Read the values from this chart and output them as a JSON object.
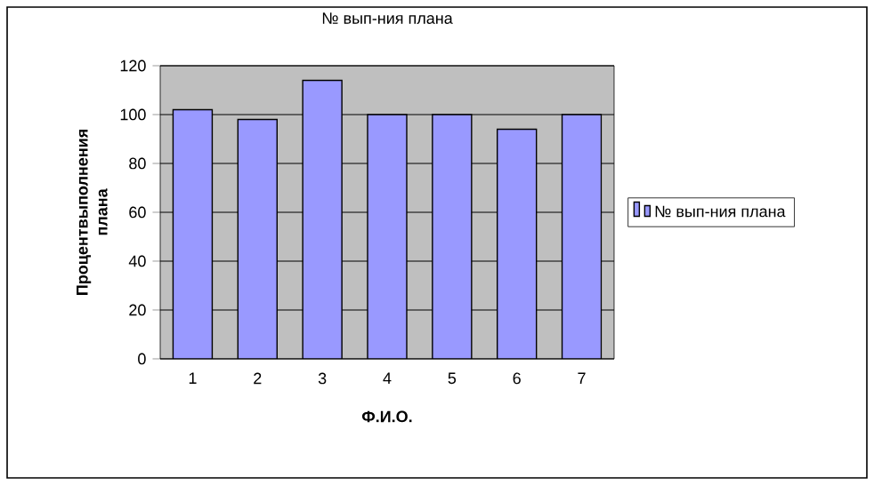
{
  "chart_data": {
    "type": "bar",
    "title": "№ вып-ния плана",
    "xlabel": "Ф.И.О.",
    "ylabel": "Процентвыполнения плана",
    "categories": [
      "1",
      "2",
      "3",
      "4",
      "5",
      "6",
      "7"
    ],
    "series": [
      {
        "name": "№ вып-ния плана",
        "color": "#9999ff",
        "values": [
          102,
          98,
          114,
          100,
          100,
          94,
          100
        ]
      }
    ],
    "ylim": [
      0,
      120
    ],
    "yticks": [
      0,
      20,
      40,
      60,
      80,
      100,
      120
    ],
    "grid": "y",
    "legend": "right"
  }
}
